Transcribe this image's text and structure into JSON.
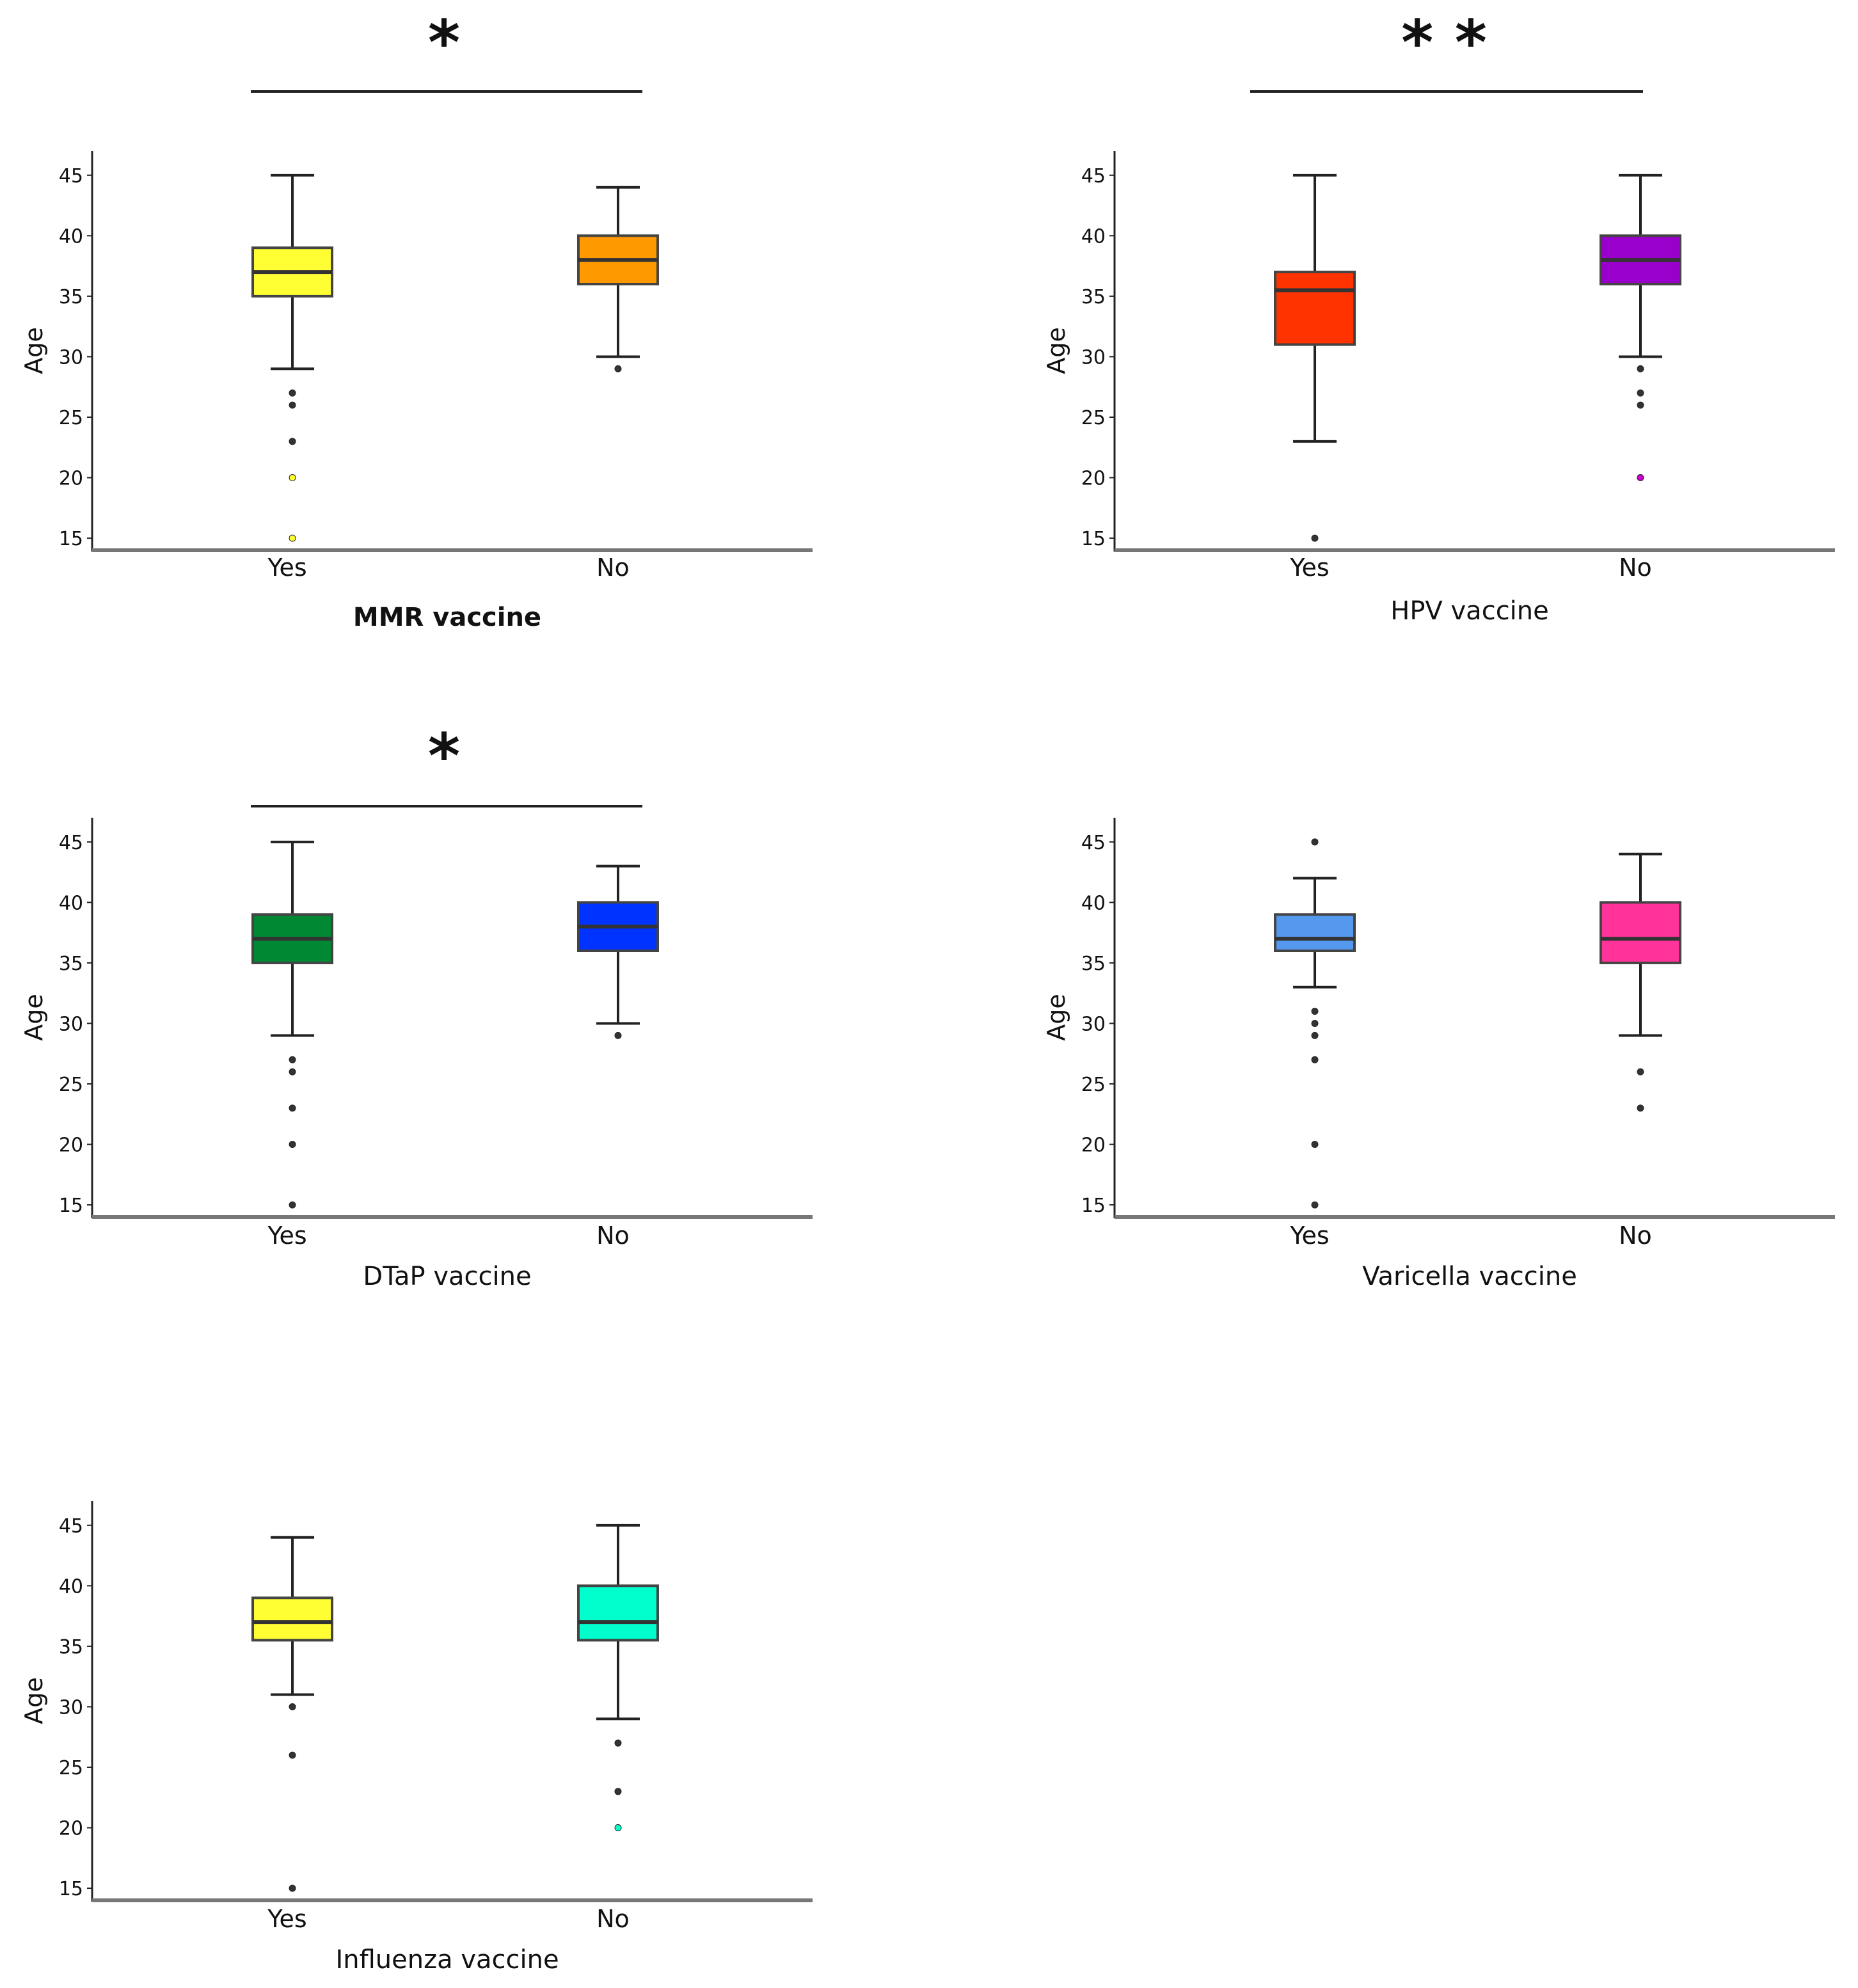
{
  "chart_data": [
    {
      "type": "box",
      "ylabel": "Age",
      "xlabel": "MMR vaccine",
      "xlabel_bold": true,
      "significance": "*",
      "ylim": [
        14,
        47
      ],
      "yticks": [
        15,
        20,
        25,
        30,
        35,
        40,
        45
      ],
      "categories": [
        "Yes",
        "No"
      ],
      "boxes": [
        {
          "category": "Yes",
          "color": "#FFFF33",
          "median": 37,
          "q1": 35,
          "q3": 39,
          "whisker_low": 29,
          "whisker_high": 45,
          "outliers": [
            15,
            20,
            23,
            26,
            27
          ],
          "outlier_colors": [
            "#FFFF33",
            "#FFFF33",
            "#333333",
            "#333333",
            "#333333"
          ]
        },
        {
          "category": "No",
          "color": "#FF9900",
          "median": 38,
          "q1": 36,
          "q3": 40,
          "whisker_low": 30,
          "whisker_high": 44,
          "outliers": [
            29
          ],
          "outlier_colors": [
            "#333333"
          ]
        }
      ]
    },
    {
      "type": "box",
      "ylabel": "Age",
      "xlabel": "HPV vaccine",
      "xlabel_bold": false,
      "significance": "* *",
      "ylim": [
        14,
        47
      ],
      "yticks": [
        15,
        20,
        25,
        30,
        35,
        40,
        45
      ],
      "categories": [
        "Yes",
        "No"
      ],
      "boxes": [
        {
          "category": "Yes",
          "color": "#FF3300",
          "median": 35.5,
          "q1": 31,
          "q3": 37,
          "whisker_low": 23,
          "whisker_high": 45,
          "outliers": [
            15
          ],
          "outlier_colors": [
            "#333333"
          ]
        },
        {
          "category": "No",
          "color": "#9900CC",
          "median": 38,
          "q1": 36,
          "q3": 40,
          "whisker_low": 30,
          "whisker_high": 45,
          "outliers": [
            20,
            26,
            27,
            29
          ],
          "outlier_colors": [
            "#CC00CC",
            "#333333",
            "#333333",
            "#333333"
          ]
        }
      ]
    },
    {
      "type": "box",
      "ylabel": "Age",
      "xlabel": "DTaP vaccine",
      "xlabel_bold": false,
      "significance": "*",
      "ylim": [
        14,
        47
      ],
      "yticks": [
        15,
        20,
        25,
        30,
        35,
        40,
        45
      ],
      "categories": [
        "Yes",
        "No"
      ],
      "boxes": [
        {
          "category": "Yes",
          "color": "#008833",
          "median": 37,
          "q1": 35,
          "q3": 39,
          "whisker_low": 29,
          "whisker_high": 45,
          "outliers": [
            15,
            20,
            23,
            26,
            27
          ],
          "outlier_colors": [
            "#333333",
            "#333333",
            "#333333",
            "#333333",
            "#333333"
          ]
        },
        {
          "category": "No",
          "color": "#0033FF",
          "median": 38,
          "q1": 36,
          "q3": 40,
          "whisker_low": 30,
          "whisker_high": 43,
          "outliers": [
            29
          ],
          "outlier_colors": [
            "#333333"
          ]
        }
      ]
    },
    {
      "type": "box",
      "ylabel": "Age",
      "xlabel": "Varicella vaccine",
      "xlabel_bold": false,
      "significance": "",
      "ylim": [
        14,
        47
      ],
      "yticks": [
        15,
        20,
        25,
        30,
        35,
        40,
        45
      ],
      "categories": [
        "Yes",
        "No"
      ],
      "boxes": [
        {
          "category": "Yes",
          "color": "#5599EE",
          "median": 37,
          "q1": 36,
          "q3": 39,
          "whisker_low": 33,
          "whisker_high": 42,
          "outliers": [
            15,
            20,
            27,
            29,
            30,
            31,
            45
          ],
          "outlier_colors": [
            "#333333",
            "#333333",
            "#333333",
            "#333333",
            "#333333",
            "#333333",
            "#333333"
          ]
        },
        {
          "category": "No",
          "color": "#FF3399",
          "median": 37,
          "q1": 35,
          "q3": 40,
          "whisker_low": 29,
          "whisker_high": 44,
          "outliers": [
            23,
            26
          ],
          "outlier_colors": [
            "#333333",
            "#333333"
          ]
        }
      ]
    },
    {
      "type": "box",
      "ylabel": "Age",
      "xlabel": "Influenza vaccine",
      "xlabel_bold": false,
      "significance": "",
      "ylim": [
        14,
        47
      ],
      "yticks": [
        15,
        20,
        25,
        30,
        35,
        40,
        45
      ],
      "categories": [
        "Yes",
        "No"
      ],
      "boxes": [
        {
          "category": "Yes",
          "color": "#FFFF33",
          "median": 37,
          "q1": 35.5,
          "q3": 39,
          "whisker_low": 31,
          "whisker_high": 44,
          "outliers": [
            15,
            26,
            30
          ],
          "outlier_colors": [
            "#333333",
            "#333333",
            "#333333"
          ]
        },
        {
          "category": "No",
          "color": "#00FFCC",
          "median": 37,
          "q1": 35.5,
          "q3": 40,
          "whisker_low": 29,
          "whisker_high": 45,
          "outliers": [
            20,
            23,
            27
          ],
          "outlier_colors": [
            "#00FFCC",
            "#333333",
            "#333333"
          ]
        }
      ]
    }
  ]
}
